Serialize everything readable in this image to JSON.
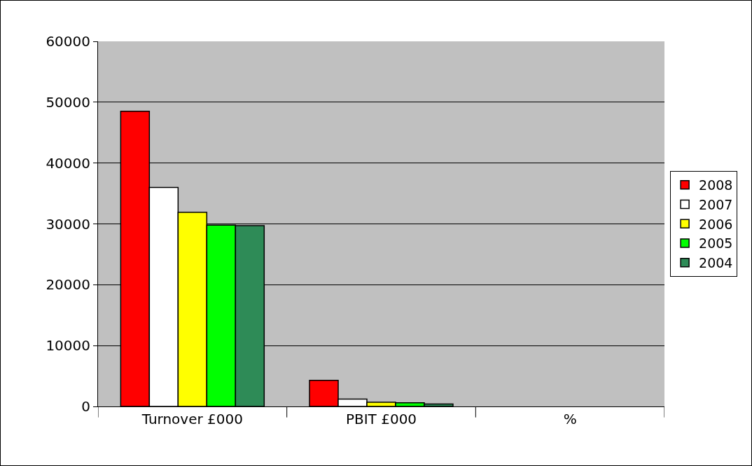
{
  "chart_data": {
    "type": "bar",
    "categories": [
      "Turnover £000",
      "PBIT £000",
      "%"
    ],
    "series": [
      {
        "name": "2008",
        "color": "#ff0000",
        "values": [
          48500,
          4300,
          null
        ]
      },
      {
        "name": "2007",
        "color": "#ffffff",
        "values": [
          36000,
          1200,
          null
        ]
      },
      {
        "name": "2006",
        "color": "#ffff00",
        "values": [
          31900,
          700,
          null
        ]
      },
      {
        "name": "2005",
        "color": "#00ff00",
        "values": [
          29800,
          600,
          null
        ]
      },
      {
        "name": "2004",
        "color": "#2e8b57",
        "values": [
          29700,
          400,
          null
        ]
      }
    ],
    "ylim": [
      0,
      60000
    ],
    "yticks": [
      0,
      10000,
      20000,
      30000,
      40000,
      50000,
      60000
    ],
    "grid": "y",
    "legend": "right"
  }
}
